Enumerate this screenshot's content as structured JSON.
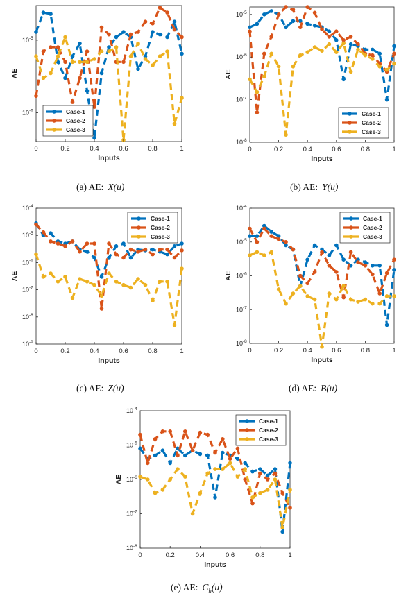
{
  "colors": {
    "case1": "#0072BD",
    "case2": "#D95319",
    "case3": "#EDB120"
  },
  "chart_data": [
    {
      "id": "a",
      "type": "line",
      "caption": "(a) AE:",
      "func": "X(u)",
      "xlabel": "Inputs",
      "ylabel": "AE",
      "xlim": [
        0,
        1
      ],
      "xticks": [
        "0",
        "0.2",
        "0.4",
        "0.6",
        "0.8",
        "1"
      ],
      "yscale": "log",
      "ylim": [
        4e-07,
        3e-05
      ],
      "yticks": [
        {
          "v": 1e-05,
          "b": "10",
          "e": "-5"
        },
        {
          "v": 1e-06,
          "b": "10",
          "e": "-6"
        }
      ],
      "legend": "bottom-left",
      "series": [
        {
          "name": "Case-1",
          "x": [
            0,
            0.05,
            0.1,
            0.15,
            0.2,
            0.25,
            0.3,
            0.35,
            0.4,
            0.45,
            0.5,
            0.55,
            0.6,
            0.65,
            0.7,
            0.75,
            0.8,
            0.85,
            0.9,
            0.95,
            1.0
          ],
          "y": [
            1.3e-05,
            2.4e-05,
            2.3e-05,
            5e-06,
            3e-06,
            6e-06,
            9e-06,
            2e-06,
            4.5e-07,
            3.5e-06,
            8e-06,
            1.1e-05,
            1.3e-05,
            1.1e-05,
            4e-06,
            6e-06,
            1.3e-05,
            1.2e-05,
            1.1e-05,
            1.8e-05,
            6.5e-06
          ]
        },
        {
          "name": "Case-2",
          "x": [
            0,
            0.05,
            0.1,
            0.15,
            0.2,
            0.25,
            0.3,
            0.35,
            0.4,
            0.45,
            0.5,
            0.55,
            0.6,
            0.65,
            0.7,
            0.75,
            0.8,
            0.85,
            0.9,
            0.95,
            1.0
          ],
          "y": [
            1.7e-06,
            7e-06,
            8e-06,
            8e-06,
            5e-06,
            1.4e-06,
            3e-06,
            7e-06,
            1.2e-06,
            1.5e-05,
            1.2e-05,
            5e-06,
            5e-06,
            1.2e-05,
            1.3e-05,
            1.8e-05,
            1.7e-05,
            2.8e-05,
            2.4e-05,
            1.4e-05,
            1.1e-05
          ]
        },
        {
          "name": "Case-3",
          "x": [
            0,
            0.05,
            0.1,
            0.15,
            0.2,
            0.25,
            0.3,
            0.35,
            0.4,
            0.45,
            0.5,
            0.55,
            0.6,
            0.65,
            0.7,
            0.75,
            0.8,
            0.85,
            0.9,
            0.95,
            1.0
          ],
          "y": [
            6e-06,
            3e-06,
            3.5e-06,
            6e-06,
            1.1e-05,
            5e-06,
            5e-06,
            5e-06,
            5.5e-06,
            7e-06,
            7e-06,
            8e-06,
            4.2e-07,
            6e-06,
            9e-06,
            5.5e-06,
            4.5e-06,
            6e-06,
            7e-06,
            7e-07,
            1.6e-06
          ]
        }
      ]
    },
    {
      "id": "b",
      "type": "line",
      "caption": "(b) AE:",
      "func": "Y(u)",
      "xlabel": "Inputs",
      "ylabel": "AE",
      "xlim": [
        0,
        1
      ],
      "xticks": [
        "0",
        "0.2",
        "0.4",
        "0.6",
        "0.8",
        "1"
      ],
      "yscale": "log",
      "ylim": [
        1e-08,
        1.5e-05
      ],
      "yticks": [
        {
          "v": 1e-05,
          "b": "10",
          "e": "-5"
        },
        {
          "v": 1e-06,
          "b": "10",
          "e": "-6"
        },
        {
          "v": 1e-07,
          "b": "10",
          "e": "-7"
        },
        {
          "v": 1e-08,
          "b": "10",
          "e": "-8"
        }
      ],
      "legend": "bottom-right",
      "series": [
        {
          "name": "Case-1",
          "x": [
            0,
            0.05,
            0.1,
            0.15,
            0.2,
            0.25,
            0.3,
            0.35,
            0.4,
            0.45,
            0.5,
            0.55,
            0.6,
            0.65,
            0.7,
            0.75,
            0.8,
            0.85,
            0.9,
            0.95,
            1.0
          ],
          "y": [
            5e-06,
            6e-06,
            1e-05,
            1.2e-05,
            1e-05,
            5e-06,
            7e-06,
            7e-06,
            6e-06,
            5.5e-06,
            5e-06,
            4e-06,
            2.5e-06,
            3e-07,
            2e-06,
            1.8e-06,
            1.5e-06,
            1.5e-06,
            1.2e-06,
            1e-07,
            1.8e-06
          ]
        },
        {
          "name": "Case-2",
          "x": [
            0,
            0.05,
            0.1,
            0.15,
            0.2,
            0.25,
            0.3,
            0.35,
            0.4,
            0.45,
            0.5,
            0.55,
            0.6,
            0.65,
            0.7,
            0.75,
            0.8,
            0.85,
            0.9,
            0.95,
            1.0
          ],
          "y": [
            4e-06,
            5e-08,
            1.2e-06,
            3e-06,
            1e-05,
            1.5e-05,
            1.3e-05,
            5e-06,
            1.5e-05,
            1.1e-05,
            4.5e-06,
            3e-06,
            4e-06,
            2.5e-06,
            3e-06,
            2e-06,
            1.2e-06,
            1.1e-06,
            7e-07,
            4.5e-07,
            1.2e-06
          ]
        },
        {
          "name": "Case-3",
          "x": [
            0,
            0.05,
            0.1,
            0.15,
            0.2,
            0.25,
            0.3,
            0.35,
            0.4,
            0.45,
            0.5,
            0.55,
            0.6,
            0.65,
            0.7,
            0.75,
            0.8,
            0.85,
            0.9,
            0.95,
            1.0
          ],
          "y": [
            3e-07,
            1.5e-07,
            3.5e-07,
            1.2e-06,
            6e-07,
            1.5e-08,
            6e-07,
            1.1e-06,
            1.3e-06,
            1.7e-06,
            1.4e-06,
            2e-06,
            1.3e-06,
            2.1e-06,
            4.5e-07,
            1.5e-06,
            1.1e-06,
            9e-07,
            6e-07,
            5e-07,
            7e-07
          ]
        }
      ]
    },
    {
      "id": "c",
      "type": "line",
      "caption": "(c) AE:",
      "func": "Z(u)",
      "xlabel": "Inputs",
      "ylabel": "AE",
      "xlim": [
        0,
        1
      ],
      "xticks": [
        "0",
        "0.2",
        "0.4",
        "0.6",
        "0.8",
        "1"
      ],
      "yscale": "log",
      "ylim": [
        1e-09,
        0.0001
      ],
      "yticks": [
        {
          "v": 0.0001,
          "b": "10",
          "e": "-4"
        },
        {
          "v": 1e-05,
          "b": "10",
          "e": "-5"
        },
        {
          "v": 1e-06,
          "b": "10",
          "e": "-6"
        },
        {
          "v": 1e-07,
          "b": "10",
          "e": "-7"
        },
        {
          "v": 1e-08,
          "b": "10",
          "e": "-8"
        },
        {
          "v": 1e-09,
          "b": "10",
          "e": "-9"
        }
      ],
      "legend": "top-right",
      "series": [
        {
          "name": "Case-1",
          "x": [
            0,
            0.05,
            0.1,
            0.15,
            0.2,
            0.25,
            0.3,
            0.35,
            0.4,
            0.45,
            0.5,
            0.55,
            0.6,
            0.65,
            0.7,
            0.75,
            0.8,
            0.85,
            0.9,
            0.95,
            1.0
          ],
          "y": [
            2.8e-05,
            1e-05,
            1.2e-05,
            6e-06,
            5e-06,
            6e-06,
            3e-06,
            2.5e-06,
            1.5e-06,
            3e-07,
            1.5e-06,
            4e-06,
            5e-06,
            1.5e-06,
            3e-06,
            2.8e-06,
            3e-06,
            2.5e-06,
            2e-06,
            4e-06,
            5e-06
          ]
        },
        {
          "name": "Case-2",
          "x": [
            0,
            0.05,
            0.1,
            0.15,
            0.2,
            0.25,
            0.3,
            0.35,
            0.4,
            0.45,
            0.5,
            0.55,
            0.6,
            0.65,
            0.7,
            0.75,
            0.8,
            0.85,
            0.9,
            0.95,
            1.0
          ],
          "y": [
            2.5e-05,
            1.3e-05,
            6e-06,
            5e-06,
            4e-06,
            6e-06,
            2.5e-06,
            5e-06,
            5e-06,
            2e-08,
            5e-06,
            2e-06,
            1.5e-06,
            3e-06,
            2.5e-06,
            3e-06,
            2e-06,
            3e-06,
            3e-06,
            1.5e-06,
            2.8e-06
          ]
        },
        {
          "name": "Case-3",
          "x": [
            0,
            0.05,
            0.1,
            0.15,
            0.2,
            0.25,
            0.3,
            0.35,
            0.4,
            0.45,
            0.5,
            0.55,
            0.6,
            0.65,
            0.7,
            0.75,
            0.8,
            0.85,
            0.9,
            0.95,
            1.0
          ],
          "y": [
            2e-06,
            3e-07,
            4e-07,
            2e-07,
            3e-07,
            5e-08,
            2.5e-07,
            2e-07,
            1.5e-07,
            6e-08,
            4e-07,
            2e-07,
            1.5e-07,
            1.2e-07,
            2.5e-07,
            1.5e-07,
            4e-08,
            2e-07,
            2e-07,
            5e-09,
            6e-07
          ]
        }
      ]
    },
    {
      "id": "d",
      "type": "line",
      "caption": "(d) AE:",
      "func": "B(u)",
      "xlabel": "Inputs",
      "ylabel": "AE",
      "xlim": [
        0,
        1
      ],
      "xticks": [
        "0",
        "0.2",
        "0.4",
        "0.6",
        "0.8",
        "1"
      ],
      "yscale": "log",
      "ylim": [
        1e-08,
        0.0001
      ],
      "yticks": [
        {
          "v": 0.0001,
          "b": "10",
          "e": "-4"
        },
        {
          "v": 1e-05,
          "b": "10",
          "e": "-5"
        },
        {
          "v": 1e-06,
          "b": "10",
          "e": "-6"
        },
        {
          "v": 1e-07,
          "b": "10",
          "e": "-7"
        },
        {
          "v": 1e-08,
          "b": "10",
          "e": "-8"
        }
      ],
      "legend": "top-right",
      "series": [
        {
          "name": "Case-1",
          "x": [
            0,
            0.05,
            0.1,
            0.15,
            0.2,
            0.25,
            0.3,
            0.35,
            0.4,
            0.45,
            0.5,
            0.55,
            0.6,
            0.65,
            0.7,
            0.75,
            0.8,
            0.85,
            0.9,
            0.95,
            1.0
          ],
          "y": [
            1.5e-05,
            1.5e-05,
            3e-05,
            2e-05,
            1.5e-05,
            8e-06,
            6e-06,
            5e-07,
            3e-06,
            8e-06,
            6e-06,
            4e-06,
            8e-06,
            3e-06,
            2e-06,
            3e-06,
            2.5e-06,
            2e-06,
            2e-06,
            3.5e-08,
            1.5e-06
          ]
        },
        {
          "name": "Case-2",
          "x": [
            0,
            0.05,
            0.1,
            0.15,
            0.2,
            0.25,
            0.3,
            0.35,
            0.4,
            0.45,
            0.5,
            0.55,
            0.6,
            0.65,
            0.7,
            0.75,
            0.8,
            0.85,
            0.9,
            0.95,
            1.0
          ],
          "y": [
            2.5e-05,
            1e-05,
            2.5e-05,
            1.5e-05,
            1.2e-05,
            1e-05,
            6e-06,
            1e-06,
            6e-07,
            1.3e-06,
            5e-06,
            2e-06,
            1.3e-06,
            2.3e-07,
            5e-06,
            2.5e-06,
            2e-06,
            1.1e-06,
            3e-07,
            1.2e-06,
            3e-06
          ]
        },
        {
          "name": "Case-3",
          "x": [
            0,
            0.05,
            0.1,
            0.15,
            0.2,
            0.25,
            0.3,
            0.35,
            0.4,
            0.45,
            0.5,
            0.55,
            0.6,
            0.65,
            0.7,
            0.75,
            0.8,
            0.85,
            0.9,
            0.95,
            1.0
          ],
          "y": [
            4e-06,
            5e-06,
            4e-06,
            5e-06,
            4e-07,
            1.5e-07,
            3e-07,
            5e-07,
            2.5e-07,
            2e-07,
            8e-09,
            3e-07,
            2e-07,
            5e-07,
            2e-07,
            1.7e-07,
            2e-07,
            1.5e-07,
            1.5e-07,
            2.5e-07,
            2.5e-07
          ]
        }
      ]
    },
    {
      "id": "e",
      "type": "line",
      "caption": "(e) AE:",
      "func": "C",
      "funcSub": "h",
      "funcArg": "(u)",
      "xlabel": "Inputs",
      "ylabel": "AE",
      "xlim": [
        0,
        1
      ],
      "xticks": [
        "0",
        "0.2",
        "0.4",
        "0.6",
        "0.8",
        "1"
      ],
      "yscale": "log",
      "ylim": [
        1e-08,
        0.0001
      ],
      "yticks": [
        {
          "v": 0.0001,
          "b": "10",
          "e": "-4"
        },
        {
          "v": 1e-05,
          "b": "10",
          "e": "-5"
        },
        {
          "v": 1e-06,
          "b": "10",
          "e": "-6"
        },
        {
          "v": 1e-07,
          "b": "10",
          "e": "-7"
        },
        {
          "v": 1e-08,
          "b": "10",
          "e": "-8"
        }
      ],
      "legend": "top-right",
      "series": [
        {
          "name": "Case-1",
          "x": [
            0,
            0.05,
            0.1,
            0.15,
            0.2,
            0.25,
            0.3,
            0.35,
            0.4,
            0.45,
            0.5,
            0.55,
            0.6,
            0.65,
            0.7,
            0.75,
            0.8,
            0.85,
            0.9,
            0.95,
            1.0
          ],
          "y": [
            8e-06,
            4e-06,
            5e-06,
            7e-06,
            3e-06,
            8e-06,
            5e-06,
            7e-06,
            5.5e-06,
            5e-06,
            3e-07,
            6e-06,
            5e-06,
            4e-06,
            3e-06,
            1.7e-06,
            2e-06,
            1.3e-06,
            2e-06,
            3e-08,
            3e-06
          ]
        },
        {
          "name": "Case-2",
          "x": [
            0,
            0.05,
            0.1,
            0.15,
            0.2,
            0.25,
            0.3,
            0.35,
            0.4,
            0.45,
            0.5,
            0.55,
            0.6,
            0.65,
            0.7,
            0.75,
            0.8,
            0.85,
            0.9,
            0.95,
            1.0
          ],
          "y": [
            2e-05,
            3e-06,
            1.5e-05,
            2.5e-05,
            2.5e-05,
            5e-06,
            2.5e-05,
            7e-06,
            2.3e-05,
            2e-05,
            6e-06,
            1.5e-05,
            4e-06,
            8e-06,
            1e-06,
            2e-07,
            1.5e-06,
            1e-06,
            1.5e-06,
            4e-07,
            1.5e-07
          ]
        },
        {
          "name": "Case-3",
          "x": [
            0,
            0.05,
            0.1,
            0.15,
            0.2,
            0.25,
            0.3,
            0.35,
            0.4,
            0.45,
            0.5,
            0.55,
            0.6,
            0.65,
            0.7,
            0.75,
            0.8,
            0.85,
            0.9,
            0.95,
            1.0
          ],
          "y": [
            1.2e-06,
            1e-06,
            4e-07,
            5e-07,
            1e-06,
            2e-06,
            1.2e-06,
            1e-07,
            4e-07,
            1.5e-06,
            2e-06,
            2e-06,
            3e-06,
            1.2e-06,
            2e-06,
            3e-07,
            4e-07,
            5e-07,
            1e-06,
            4e-08,
            5e-07
          ]
        }
      ]
    }
  ]
}
